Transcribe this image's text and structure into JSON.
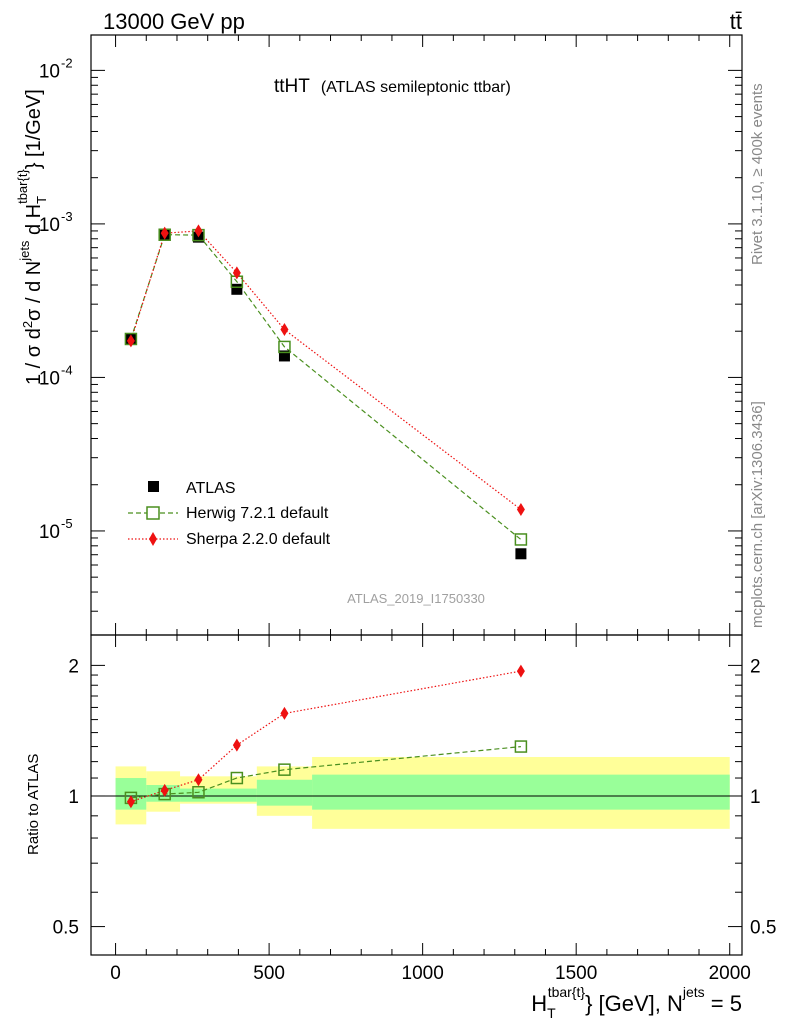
{
  "header": {
    "energy_label": "13000 GeV pp",
    "process_label": "tt̄"
  },
  "side_text": {
    "rivet": "Rivet 3.1.10, ≥ 400k events",
    "mcplots": "mcplots.cern.ch [arXiv:1306.3436]"
  },
  "chart_data": [
    {
      "type": "scatter",
      "title_main": "ttHT",
      "title_sub": "(ATLAS semileptonic ttbar)",
      "watermark": "ATLAS_2019_I1750330",
      "ylabel": "1 / σ d²σ / d N^jets d H_T^tbar{t} [1/GeV]",
      "yscale": "log",
      "ylim": [
        2.1e-06,
        0.017
      ],
      "xlim": [
        -80,
        2040
      ],
      "ytick_labels": [
        "10",
        "10",
        "10",
        "10"
      ],
      "ytick_exponents": [
        "-5",
        "-4",
        "-3",
        "-2"
      ],
      "ytick_values": [
        1e-05,
        0.0001,
        0.001,
        0.01
      ],
      "legend_position": "bottom-left",
      "series": [
        {
          "name": "ATLAS",
          "color": "#000000",
          "marker": "filled-square",
          "x": [
            50,
            160,
            270,
            395,
            550,
            1320
          ],
          "y": [
            0.000178,
            0.00085,
            0.00082,
            0.000375,
            0.000138,
            7.1e-06
          ]
        },
        {
          "name": "Herwig 7.2.1 default",
          "color": "#4a8f1f",
          "marker": "open-square",
          "line": "dashed",
          "x": [
            50,
            160,
            270,
            395,
            550,
            1320
          ],
          "y": [
            0.000178,
            0.00085,
            0.000845,
            0.00042,
            0.000158,
            8.8e-06
          ]
        },
        {
          "name": "Sherpa 2.2.0 default",
          "color": "#ee1111",
          "marker": "filled-diamond",
          "line": "dotted",
          "x": [
            50,
            160,
            270,
            395,
            550,
            1320
          ],
          "y": [
            0.000173,
            0.00087,
            0.0009,
            0.00048,
            0.000205,
            1.38e-05
          ]
        }
      ]
    },
    {
      "type": "scatter",
      "ylabel": "Ratio to ATLAS",
      "yscale": "log",
      "ylim": [
        0.43,
        2.35
      ],
      "ytick_values": [
        0.5,
        1,
        2
      ],
      "ytick_labels": [
        "0.5",
        "1",
        "2"
      ],
      "xlabel": "H_T^tbar{t} [GeV], N^jets = 5",
      "xlabel_main": "H",
      "xlabel_sub": "T",
      "xlabel_sup": "tbar{t}",
      "xlabel_rest": "} [GeV], N",
      "xlabel_sup2": "jets",
      "xlabel_end": " = 5",
      "xtick_values": [
        0,
        500,
        1000,
        1500,
        2000
      ],
      "xtick_labels": [
        "0",
        "500",
        "1000",
        "1500",
        "2000"
      ],
      "uncertainty_bands": {
        "colors": {
          "stat": "#99ff99",
          "total": "#ffff99"
        },
        "bins": [
          {
            "xlo": 0,
            "xhi": 100,
            "stat": [
              0.93,
              1.1
            ],
            "total": [
              0.86,
              1.17
            ]
          },
          {
            "xlo": 100,
            "xhi": 210,
            "stat": [
              0.97,
              1.06
            ],
            "total": [
              0.92,
              1.14
            ]
          },
          {
            "xlo": 210,
            "xhi": 460,
            "stat": [
              0.97,
              1.04
            ],
            "total": [
              0.96,
              1.11
            ]
          },
          {
            "xlo": 460,
            "xhi": 640,
            "stat": [
              0.95,
              1.09
            ],
            "total": [
              0.9,
              1.17
            ]
          },
          {
            "xlo": 640,
            "xhi": 2000,
            "stat": [
              0.93,
              1.12
            ],
            "total": [
              0.84,
              1.23
            ]
          }
        ]
      },
      "series": [
        {
          "name": "Herwig 7.2.1 default",
          "color": "#4a8f1f",
          "marker": "open-square",
          "line": "dashed",
          "x": [
            50,
            160,
            270,
            395,
            550,
            1320
          ],
          "y": [
            0.99,
            1.01,
            1.02,
            1.1,
            1.15,
            1.3
          ]
        },
        {
          "name": "Sherpa 2.2.0 default",
          "color": "#ee1111",
          "marker": "filled-diamond",
          "line": "dotted",
          "x": [
            50,
            160,
            270,
            395,
            550,
            1320
          ],
          "y": [
            0.97,
            1.03,
            1.09,
            1.31,
            1.55,
            1.94
          ]
        }
      ]
    }
  ]
}
